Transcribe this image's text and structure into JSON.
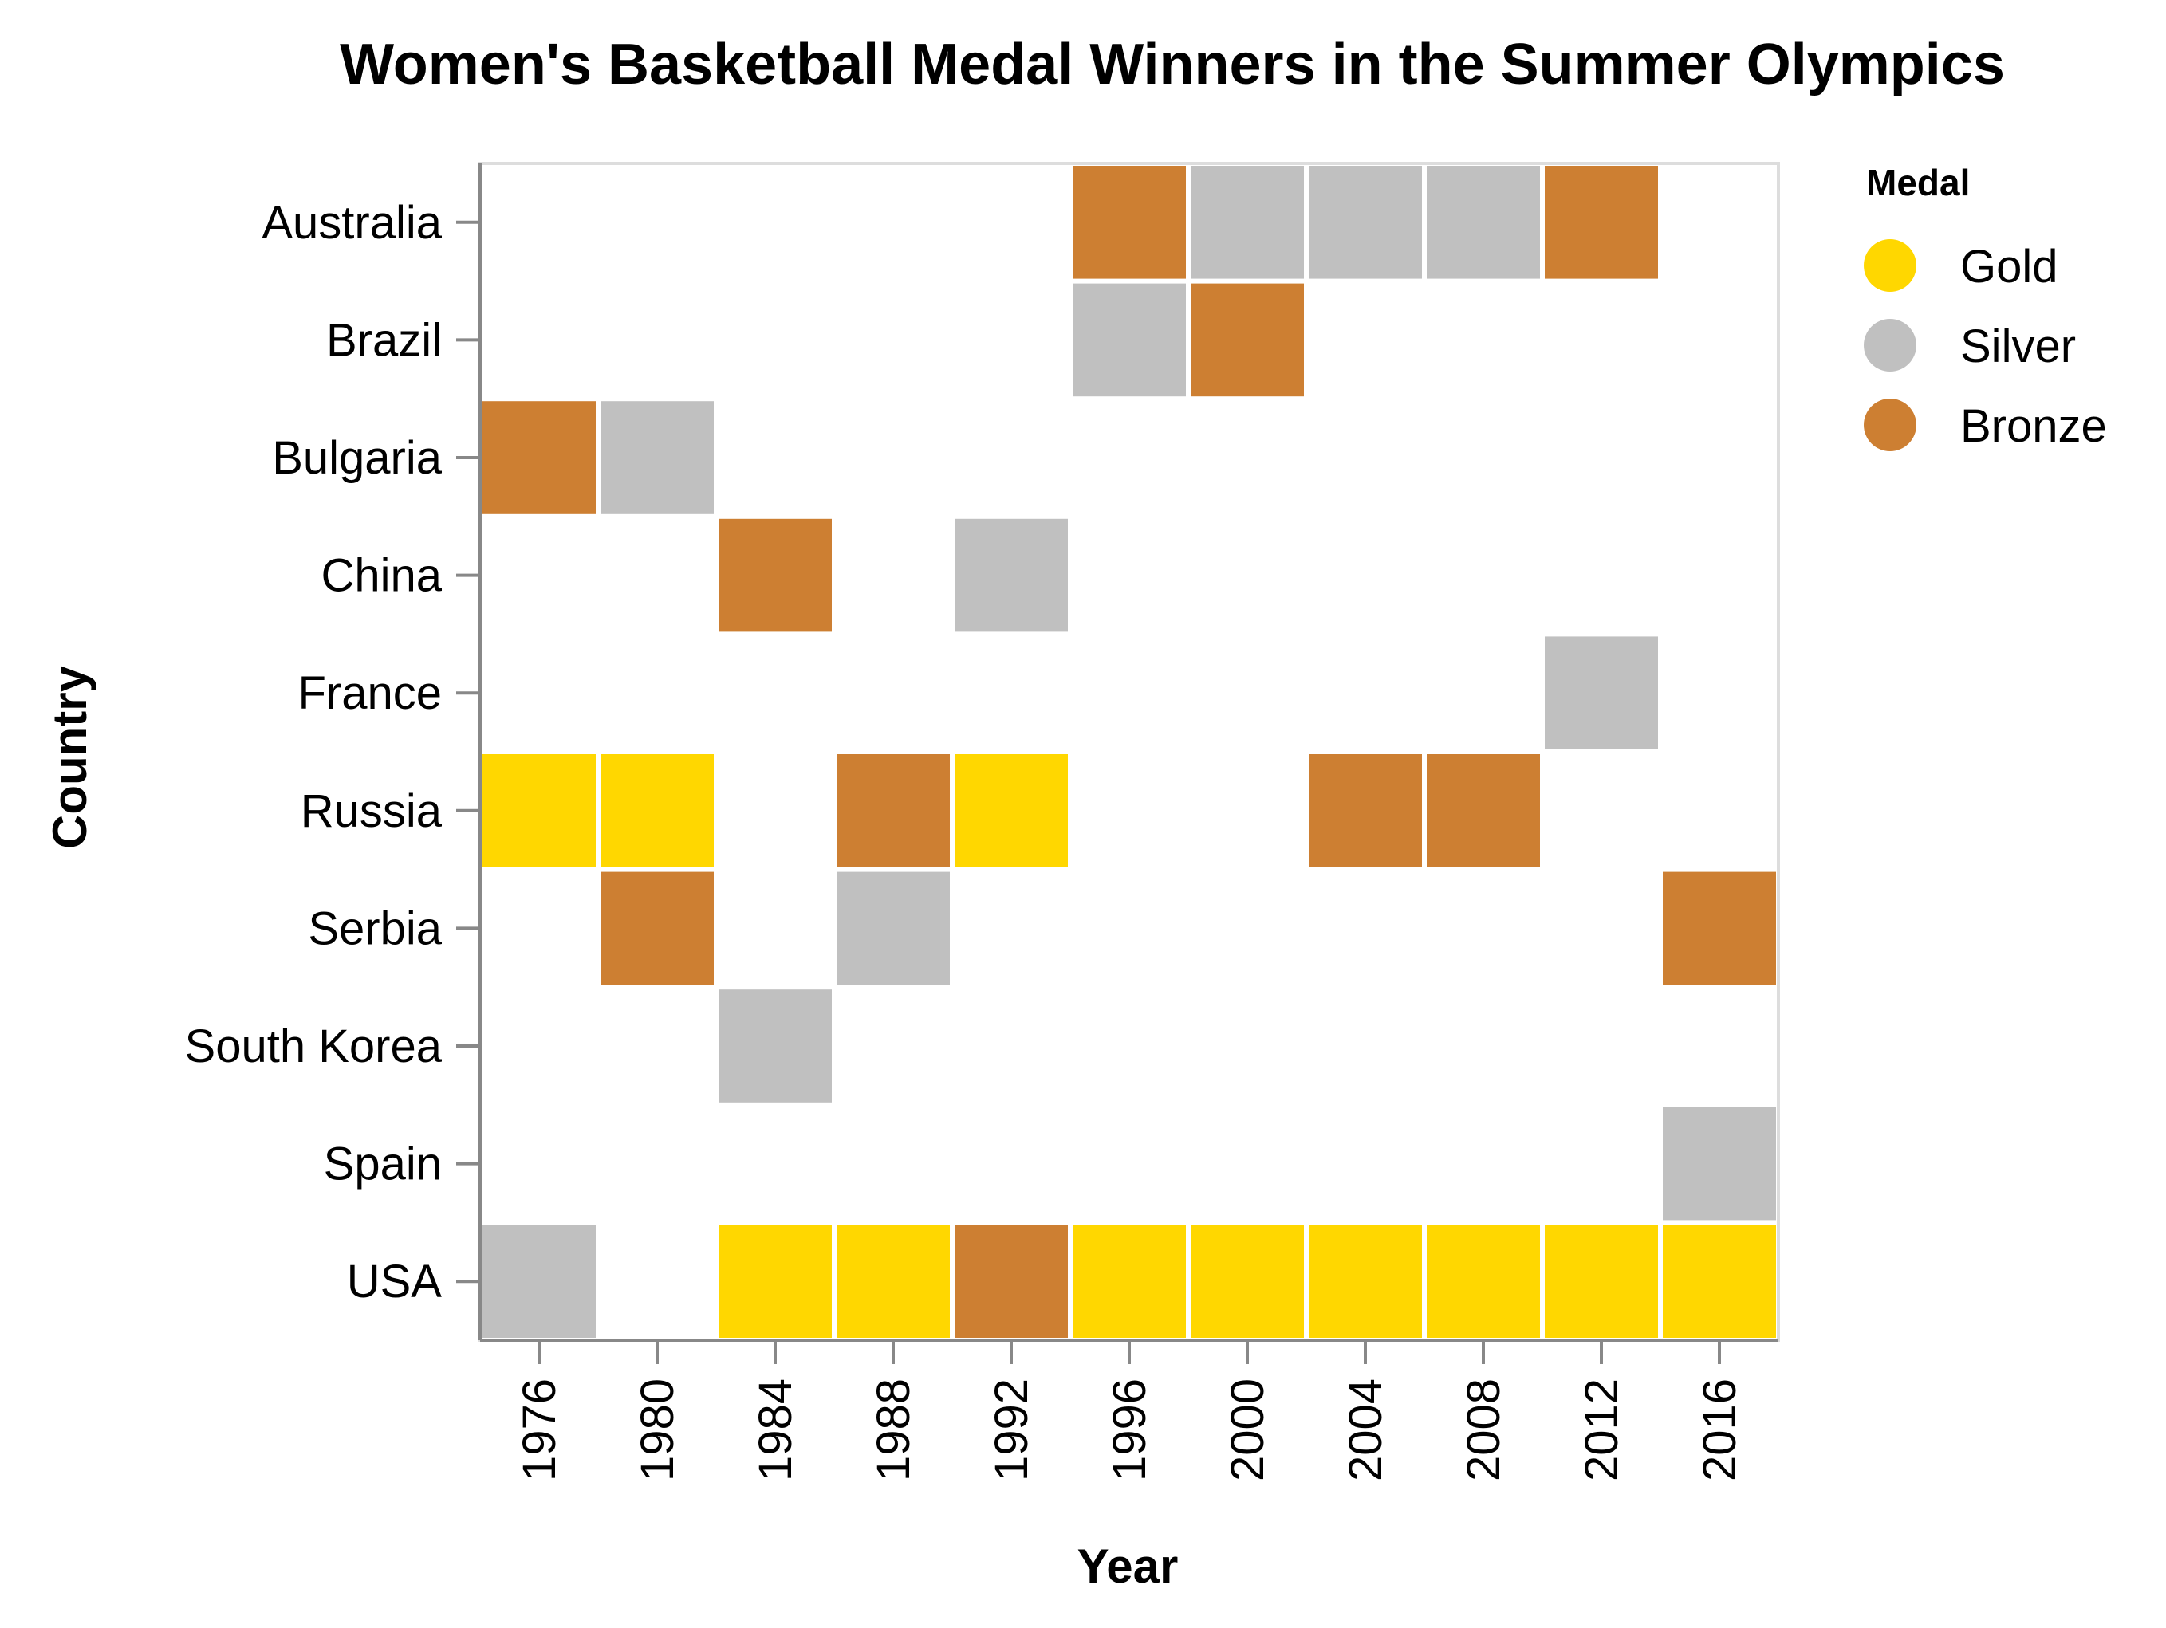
{
  "chart_data": {
    "type": "heatmap",
    "title": "Women's Basketball Medal Winners in the Summer Olympics",
    "xlabel": "Year",
    "ylabel": "Country",
    "x": [
      "1976",
      "1980",
      "1984",
      "1988",
      "1992",
      "1996",
      "2000",
      "2004",
      "2008",
      "2012",
      "2016"
    ],
    "y": [
      "Australia",
      "Brazil",
      "Bulgaria",
      "China",
      "France",
      "Russia",
      "Serbia",
      "South Korea",
      "Spain",
      "USA"
    ],
    "legend": {
      "title": "Medal",
      "placement": "right",
      "entries": [
        {
          "label": "Gold",
          "color": "#ffd700"
        },
        {
          "label": "Silver",
          "color": "#c0c0c0"
        },
        {
          "label": "Bronze",
          "color": "#cd7f32"
        }
      ]
    },
    "grid": false,
    "cells": [
      {
        "country": "Australia",
        "year": "1996",
        "medal": "Bronze"
      },
      {
        "country": "Australia",
        "year": "2000",
        "medal": "Silver"
      },
      {
        "country": "Australia",
        "year": "2004",
        "medal": "Silver"
      },
      {
        "country": "Australia",
        "year": "2008",
        "medal": "Silver"
      },
      {
        "country": "Australia",
        "year": "2012",
        "medal": "Bronze"
      },
      {
        "country": "Brazil",
        "year": "1996",
        "medal": "Silver"
      },
      {
        "country": "Brazil",
        "year": "2000",
        "medal": "Bronze"
      },
      {
        "country": "Bulgaria",
        "year": "1976",
        "medal": "Bronze"
      },
      {
        "country": "Bulgaria",
        "year": "1980",
        "medal": "Silver"
      },
      {
        "country": "China",
        "year": "1984",
        "medal": "Bronze"
      },
      {
        "country": "China",
        "year": "1992",
        "medal": "Silver"
      },
      {
        "country": "France",
        "year": "2012",
        "medal": "Silver"
      },
      {
        "country": "Russia",
        "year": "1976",
        "medal": "Gold"
      },
      {
        "country": "Russia",
        "year": "1980",
        "medal": "Gold"
      },
      {
        "country": "Russia",
        "year": "1988",
        "medal": "Bronze"
      },
      {
        "country": "Russia",
        "year": "1992",
        "medal": "Gold"
      },
      {
        "country": "Russia",
        "year": "2004",
        "medal": "Bronze"
      },
      {
        "country": "Russia",
        "year": "2008",
        "medal": "Bronze"
      },
      {
        "country": "Serbia",
        "year": "1980",
        "medal": "Bronze"
      },
      {
        "country": "Serbia",
        "year": "1988",
        "medal": "Silver"
      },
      {
        "country": "Serbia",
        "year": "2016",
        "medal": "Bronze"
      },
      {
        "country": "South Korea",
        "year": "1984",
        "medal": "Silver"
      },
      {
        "country": "Spain",
        "year": "2016",
        "medal": "Silver"
      },
      {
        "country": "USA",
        "year": "1976",
        "medal": "Silver"
      },
      {
        "country": "USA",
        "year": "1984",
        "medal": "Gold"
      },
      {
        "country": "USA",
        "year": "1988",
        "medal": "Gold"
      },
      {
        "country": "USA",
        "year": "1992",
        "medal": "Bronze"
      },
      {
        "country": "USA",
        "year": "1996",
        "medal": "Gold"
      },
      {
        "country": "USA",
        "year": "2000",
        "medal": "Gold"
      },
      {
        "country": "USA",
        "year": "2004",
        "medal": "Gold"
      },
      {
        "country": "USA",
        "year": "2008",
        "medal": "Gold"
      },
      {
        "country": "USA",
        "year": "2012",
        "medal": "Gold"
      },
      {
        "country": "USA",
        "year": "2016",
        "medal": "Gold"
      }
    ]
  }
}
